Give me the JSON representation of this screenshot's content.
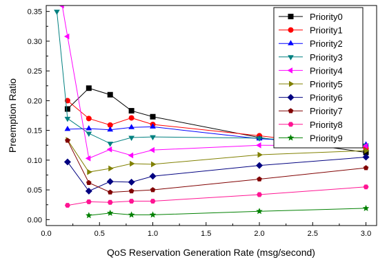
{
  "chart_data": {
    "type": "line",
    "xlabel": "QoS Reservation Generation Rate (msg/second)",
    "ylabel": "Preemption Ratio",
    "xlim": [
      0.0,
      3.1
    ],
    "ylim": [
      -0.01,
      0.36
    ],
    "xticks": [
      "0.0",
      "0.5",
      "1.0",
      "1.5",
      "2.0",
      "2.5",
      "3.0"
    ],
    "yticks": [
      "0.00",
      "0.05",
      "0.10",
      "0.15",
      "0.20",
      "0.25",
      "0.30",
      "0.35"
    ],
    "legend_position": "top-right",
    "grid": false,
    "series": [
      {
        "name": "Priority0",
        "color": "#000000",
        "marker": "square",
        "x": [
          0.2,
          0.4,
          0.6,
          0.8,
          1.0,
          2.0,
          3.0
        ],
        "y": [
          0.186,
          0.221,
          0.21,
          0.183,
          0.173,
          0.138,
          0.113
        ]
      },
      {
        "name": "Priority1",
        "color": "#ff0000",
        "marker": "circle",
        "x": [
          0.2,
          0.4,
          0.6,
          0.8,
          1.0,
          2.0,
          3.0
        ],
        "y": [
          0.2,
          0.17,
          0.159,
          0.171,
          0.16,
          0.141,
          0.12
        ]
      },
      {
        "name": "Priority2",
        "color": "#0000ff",
        "marker": "triangle-up",
        "x": [
          0.2,
          0.4,
          0.6,
          0.8,
          1.0,
          2.0,
          3.0
        ],
        "y": [
          0.152,
          0.153,
          0.151,
          0.155,
          0.156,
          0.136,
          0.126
        ]
      },
      {
        "name": "Priority3",
        "color": "#008080",
        "marker": "triangle-down",
        "x": [
          0.1,
          0.2,
          0.4,
          0.6,
          0.8,
          1.0,
          2.0,
          3.0
        ],
        "y": [
          0.35,
          0.17,
          0.145,
          0.128,
          0.138,
          0.139,
          0.137,
          0.125
        ]
      },
      {
        "name": "Priority4",
        "color": "#ff00ff",
        "marker": "triangle-left",
        "x": [
          0.15,
          0.2,
          0.4,
          0.6,
          0.8,
          1.0,
          2.0,
          3.0
        ],
        "y": [
          0.36,
          0.308,
          0.103,
          0.118,
          0.108,
          0.117,
          0.125,
          0.124
        ]
      },
      {
        "name": "Priority5",
        "color": "#808000",
        "marker": "triangle-right",
        "x": [
          0.2,
          0.4,
          0.6,
          0.8,
          1.0,
          2.0,
          3.0
        ],
        "y": [
          0.134,
          0.08,
          0.086,
          0.094,
          0.093,
          0.109,
          0.116
        ]
      },
      {
        "name": "Priority6",
        "color": "#000080",
        "marker": "diamond",
        "x": [
          0.2,
          0.4,
          0.6,
          0.8,
          1.0,
          2.0,
          3.0
        ],
        "y": [
          0.097,
          0.048,
          0.064,
          0.063,
          0.073,
          0.091,
          0.105
        ]
      },
      {
        "name": "Priority7",
        "color": "#800000",
        "marker": "pentagon",
        "x": [
          0.2,
          0.4,
          0.6,
          0.8,
          1.0,
          2.0,
          3.0
        ],
        "y": [
          0.133,
          0.062,
          0.046,
          0.048,
          0.05,
          0.068,
          0.087
        ]
      },
      {
        "name": "Priority8",
        "color": "#ff1493",
        "marker": "hexagon",
        "x": [
          0.2,
          0.4,
          0.6,
          0.8,
          1.0,
          2.0,
          3.0
        ],
        "y": [
          0.024,
          0.03,
          0.029,
          0.031,
          0.031,
          0.042,
          0.055
        ]
      },
      {
        "name": "Priority9",
        "color": "#008000",
        "marker": "star",
        "x": [
          0.4,
          0.6,
          0.8,
          1.0,
          2.0,
          3.0
        ],
        "y": [
          0.007,
          0.011,
          0.008,
          0.008,
          0.014,
          0.019
        ]
      }
    ]
  }
}
